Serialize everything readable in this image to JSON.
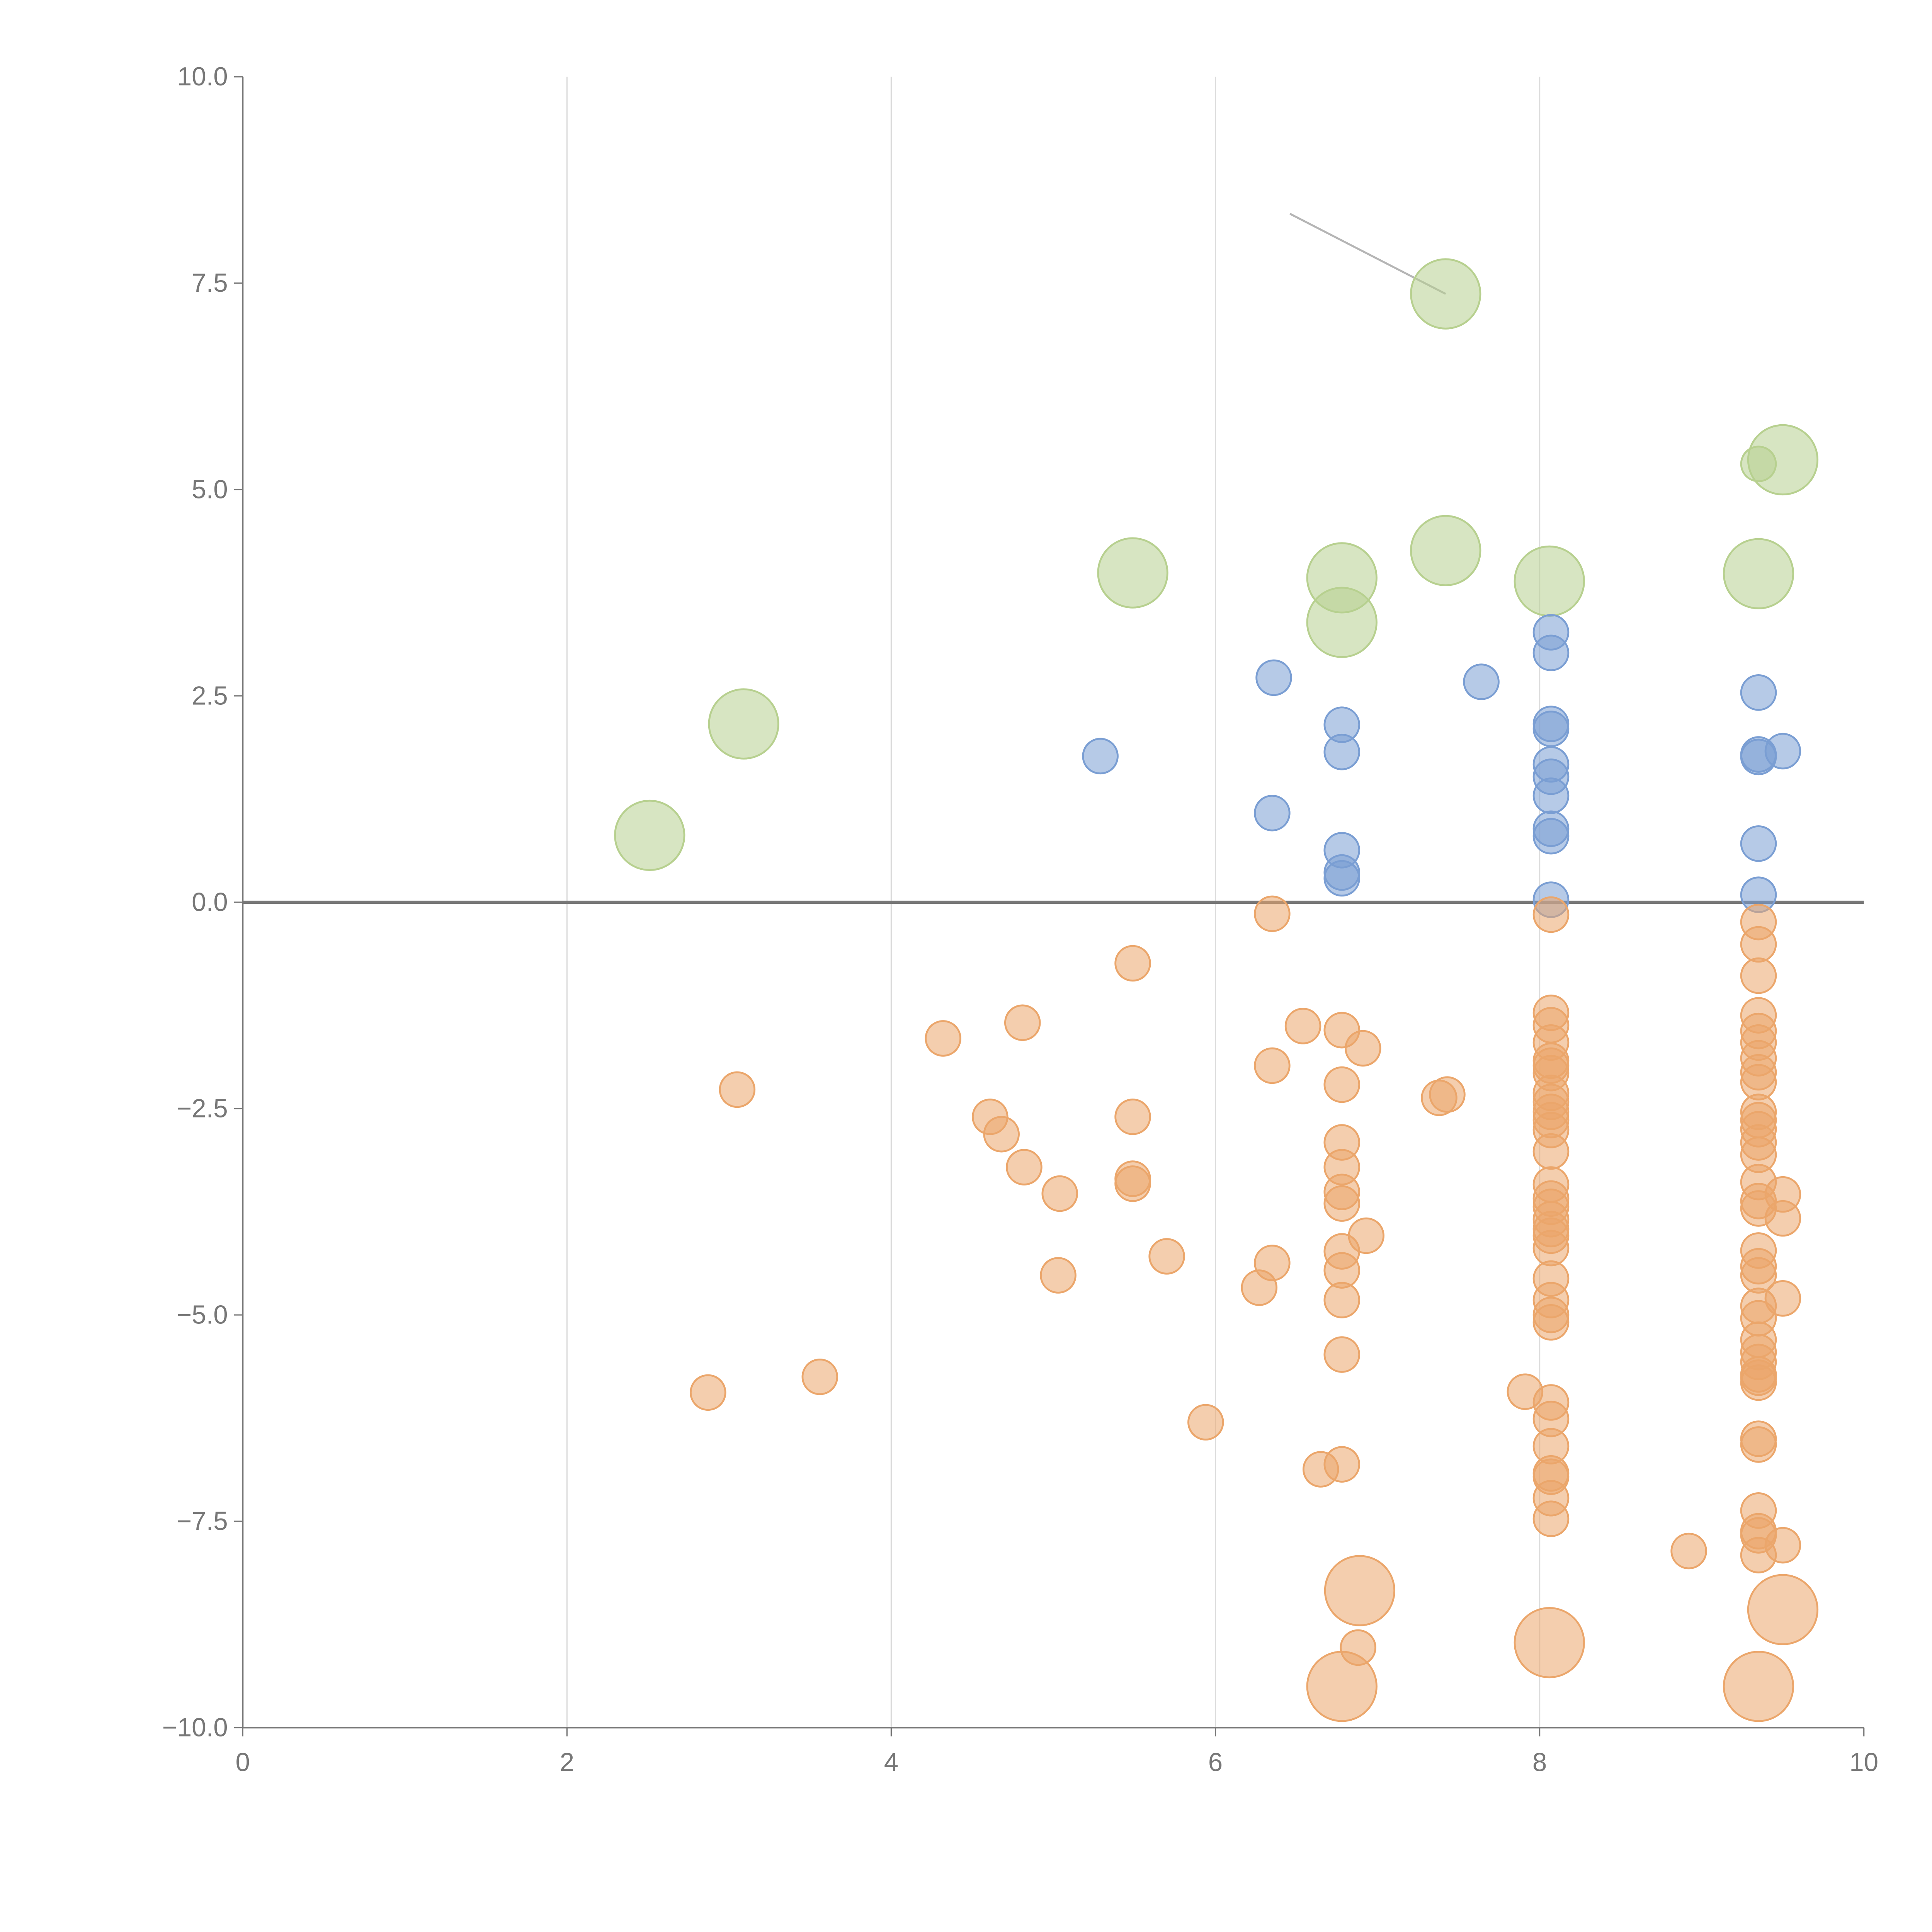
{
  "chart_data": {
    "type": "scatter",
    "title": "",
    "xlabel": "",
    "ylabel": "",
    "xlim": [
      0,
      10
    ],
    "ylim": [
      -10,
      10
    ],
    "grid": "vertical",
    "xticks": [
      "0",
      "2",
      "4",
      "6",
      "8",
      "10"
    ],
    "xtick_values": [
      0,
      2,
      4,
      6,
      8,
      10
    ],
    "yticks": [
      "10.0",
      "7.5",
      "5.0",
      "2.5",
      "0.0",
      "−2.5",
      "−5.0",
      "−7.5",
      "−10.0"
    ],
    "ytick_values": [
      10,
      7.5,
      5,
      2.5,
      0,
      -2.5,
      -5,
      -7.5,
      -10
    ],
    "reference_line_y": 0,
    "annotation_lines": [
      [
        6.46,
        8.34,
        7.42,
        7.37
      ]
    ],
    "point_format": "[x, y, relative_size]",
    "series": [
      {
        "name": "green",
        "color": "#b7d08f",
        "points": [
          [
            2.51,
            0.81,
            4
          ],
          [
            3.09,
            2.16,
            4
          ],
          [
            5.49,
            3.99,
            4
          ],
          [
            6.78,
            3.93,
            4
          ],
          [
            6.78,
            3.39,
            4
          ],
          [
            7.42,
            7.37,
            4
          ],
          [
            7.42,
            4.26,
            4
          ],
          [
            8.06,
            3.89,
            4
          ],
          [
            9.35,
            3.98,
            4
          ],
          [
            9.5,
            5.36,
            4
          ],
          [
            9.35,
            5.31,
            1
          ]
        ]
      },
      {
        "name": "blue",
        "color": "#7a9ed3",
        "points": [
          [
            5.29,
            1.77,
            1
          ],
          [
            6.36,
            2.72,
            1
          ],
          [
            6.35,
            1.08,
            1
          ],
          [
            6.78,
            2.15,
            1
          ],
          [
            6.78,
            1.82,
            1
          ],
          [
            6.78,
            0.63,
            1
          ],
          [
            6.78,
            0.36,
            1
          ],
          [
            6.78,
            0.29,
            1
          ],
          [
            7.64,
            2.67,
            1
          ],
          [
            8.07,
            3.27,
            1
          ],
          [
            8.07,
            3.02,
            1
          ],
          [
            8.07,
            2.16,
            1
          ],
          [
            8.07,
            2.1,
            1
          ],
          [
            8.07,
            1.67,
            1
          ],
          [
            8.07,
            1.52,
            1
          ],
          [
            8.07,
            1.29,
            1
          ],
          [
            8.07,
            0.89,
            1
          ],
          [
            8.07,
            0.8,
            1
          ],
          [
            8.07,
            0.03,
            1
          ],
          [
            9.35,
            2.54,
            1
          ],
          [
            9.35,
            1.79,
            1
          ],
          [
            9.35,
            1.76,
            1
          ],
          [
            9.5,
            1.83,
            1
          ],
          [
            9.35,
            0.71,
            1
          ],
          [
            9.35,
            0.09,
            1
          ]
        ]
      },
      {
        "name": "orange",
        "color": "#eba66b",
        "points": [
          [
            6.35,
            -0.14,
            1
          ],
          [
            5.49,
            -0.74,
            1
          ],
          [
            4.32,
            -1.65,
            1
          ],
          [
            4.81,
            -1.46,
            1
          ],
          [
            3.05,
            -2.27,
            1
          ],
          [
            4.61,
            -2.6,
            1
          ],
          [
            4.68,
            -2.81,
            1
          ],
          [
            5.49,
            -2.6,
            1
          ],
          [
            4.82,
            -3.21,
            1
          ],
          [
            5.49,
            -3.35,
            1
          ],
          [
            5.49,
            -3.41,
            1
          ],
          [
            5.04,
            -3.53,
            1
          ],
          [
            5.03,
            -4.52,
            1
          ],
          [
            5.7,
            -4.29,
            1
          ],
          [
            2.87,
            -5.94,
            1
          ],
          [
            3.56,
            -5.75,
            1
          ],
          [
            5.94,
            -6.3,
            1
          ],
          [
            6.35,
            -1.98,
            1
          ],
          [
            6.54,
            -1.5,
            1
          ],
          [
            6.78,
            -1.55,
            1
          ],
          [
            6.91,
            -1.77,
            1
          ],
          [
            6.78,
            -2.21,
            1
          ],
          [
            6.78,
            -2.91,
            1
          ],
          [
            6.78,
            -3.21,
            1
          ],
          [
            6.78,
            -3.51,
            1
          ],
          [
            6.78,
            -3.65,
            1
          ],
          [
            6.93,
            -4.04,
            1
          ],
          [
            6.78,
            -4.23,
            1
          ],
          [
            6.78,
            -4.46,
            1
          ],
          [
            6.35,
            -4.37,
            1
          ],
          [
            6.27,
            -4.67,
            1
          ],
          [
            6.78,
            -4.82,
            1
          ],
          [
            6.78,
            -5.48,
            1
          ],
          [
            6.65,
            -6.87,
            1
          ],
          [
            6.78,
            -6.81,
            1
          ],
          [
            6.88,
            -9.03,
            1
          ],
          [
            6.89,
            -8.34,
            4
          ],
          [
            6.78,
            -9.5,
            4
          ],
          [
            7.38,
            -2.37,
            1
          ],
          [
            7.43,
            -2.33,
            1
          ],
          [
            7.91,
            -5.93,
            1
          ],
          [
            8.06,
            -8.97,
            4
          ],
          [
            8.07,
            -0.15,
            1
          ],
          [
            8.07,
            -1.34,
            1
          ],
          [
            8.07,
            -1.49,
            1
          ],
          [
            8.07,
            -1.7,
            1
          ],
          [
            8.07,
            -1.92,
            1
          ],
          [
            8.07,
            -1.98,
            1
          ],
          [
            8.07,
            -2.07,
            1
          ],
          [
            8.07,
            -2.31,
            1
          ],
          [
            8.07,
            -2.42,
            1
          ],
          [
            8.07,
            -2.54,
            1
          ],
          [
            8.07,
            -2.64,
            1
          ],
          [
            8.07,
            -2.76,
            1
          ],
          [
            8.07,
            -3.02,
            1
          ],
          [
            8.07,
            -3.42,
            1
          ],
          [
            8.07,
            -3.59,
            1
          ],
          [
            8.07,
            -3.69,
            1
          ],
          [
            8.07,
            -3.84,
            1
          ],
          [
            8.07,
            -3.96,
            1
          ],
          [
            8.07,
            -4.04,
            1
          ],
          [
            8.07,
            -4.19,
            1
          ],
          [
            8.07,
            -4.56,
            1
          ],
          [
            8.07,
            -4.82,
            1
          ],
          [
            8.07,
            -5.0,
            1
          ],
          [
            8.07,
            -5.09,
            1
          ],
          [
            8.07,
            -6.06,
            1
          ],
          [
            8.07,
            -6.26,
            1
          ],
          [
            8.07,
            -6.59,
            1
          ],
          [
            8.07,
            -6.92,
            1
          ],
          [
            8.07,
            -6.96,
            1
          ],
          [
            8.07,
            -7.22,
            1
          ],
          [
            8.07,
            -7.47,
            1
          ],
          [
            9.35,
            -0.24,
            1
          ],
          [
            9.35,
            -0.51,
            1
          ],
          [
            9.35,
            -0.89,
            1
          ],
          [
            9.35,
            -1.37,
            1
          ],
          [
            9.35,
            -1.56,
            1
          ],
          [
            9.35,
            -1.7,
            1
          ],
          [
            9.35,
            -1.89,
            1
          ],
          [
            9.35,
            -2.06,
            1
          ],
          [
            9.35,
            -2.18,
            1
          ],
          [
            9.35,
            -2.54,
            1
          ],
          [
            9.35,
            -2.64,
            1
          ],
          [
            9.35,
            -2.75,
            1
          ],
          [
            9.35,
            -2.91,
            1
          ],
          [
            9.35,
            -3.06,
            1
          ],
          [
            9.35,
            -3.39,
            1
          ],
          [
            9.35,
            -3.62,
            1
          ],
          [
            9.35,
            -3.71,
            1
          ],
          [
            9.35,
            -4.22,
            1
          ],
          [
            9.35,
            -4.41,
            1
          ],
          [
            9.35,
            -4.52,
            1
          ],
          [
            9.35,
            -4.89,
            1
          ],
          [
            9.35,
            -5.04,
            1
          ],
          [
            9.35,
            -5.3,
            1
          ],
          [
            9.35,
            -5.45,
            1
          ],
          [
            9.35,
            -5.57,
            1
          ],
          [
            9.35,
            -5.72,
            1
          ],
          [
            9.35,
            -5.76,
            1
          ],
          [
            9.35,
            -5.82,
            1
          ],
          [
            9.35,
            -6.5,
            1
          ],
          [
            9.35,
            -6.57,
            1
          ],
          [
            9.35,
            -7.37,
            1
          ],
          [
            9.35,
            -7.62,
            1
          ],
          [
            9.35,
            -7.67,
            1
          ],
          [
            9.35,
            -7.91,
            1
          ],
          [
            9.35,
            -9.5,
            4
          ],
          [
            9.5,
            -3.54,
            1
          ],
          [
            9.5,
            -3.83,
            1
          ],
          [
            9.5,
            -4.8,
            1
          ],
          [
            9.5,
            -7.79,
            1
          ],
          [
            9.5,
            -8.57,
            4
          ],
          [
            8.92,
            -7.86,
            1
          ]
        ]
      }
    ]
  }
}
